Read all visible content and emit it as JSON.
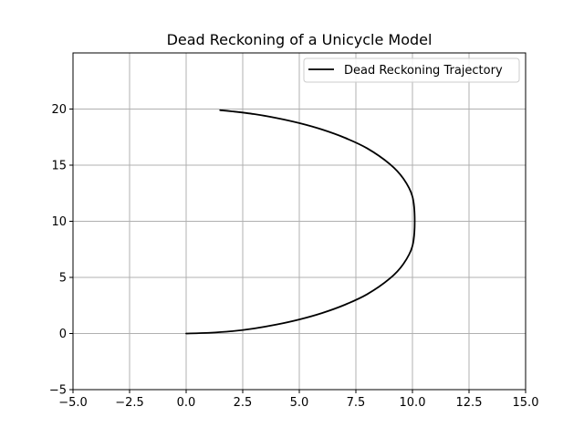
{
  "chart_data": {
    "type": "line",
    "title": "Dead Reckoning of a Unicycle Model",
    "xlabel": "",
    "ylabel": "",
    "xlim": [
      -5,
      15
    ],
    "ylim": [
      -5,
      25
    ],
    "x_ticks": [
      -5.0,
      -2.5,
      0.0,
      2.5,
      5.0,
      7.5,
      10.0,
      12.5,
      15.0
    ],
    "x_tick_labels": [
      "−5.0",
      "−2.5",
      "0.0",
      "2.5",
      "5.0",
      "7.5",
      "10.0",
      "12.5",
      "15.0"
    ],
    "y_ticks": [
      -5,
      0,
      5,
      10,
      15,
      20
    ],
    "y_tick_labels": [
      "−5",
      "0",
      "5",
      "10",
      "15",
      "20"
    ],
    "grid": true,
    "legend": "top-right",
    "series": [
      {
        "name": "Dead Reckoning Trajectory",
        "color": "#000000",
        "x": [
          0.0,
          1.0,
          2.0,
          3.0,
          4.0,
          5.0,
          6.0,
          7.0,
          8.0,
          9.0,
          9.6,
          10.0,
          10.1,
          10.0,
          9.6,
          9.0,
          8.0,
          7.0,
          6.0,
          5.0,
          4.0,
          3.0,
          2.0,
          1.5
        ],
        "y": [
          0.0,
          0.06,
          0.2,
          0.45,
          0.8,
          1.25,
          1.82,
          2.55,
          3.5,
          4.9,
          6.2,
          7.8,
          10.0,
          12.2,
          13.8,
          15.1,
          16.5,
          17.45,
          18.18,
          18.75,
          19.2,
          19.55,
          19.8,
          19.9
        ]
      }
    ]
  }
}
